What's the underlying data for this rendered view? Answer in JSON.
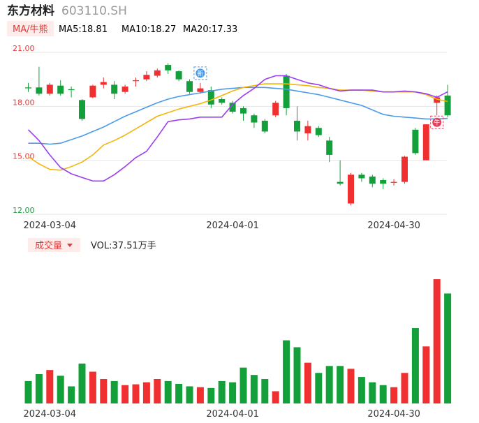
{
  "header": {
    "name": "东方材料",
    "code": "603110.SH"
  },
  "ma_legend": {
    "tag": "MA/牛熊",
    "items": [
      {
        "text": "MA5:18.81",
        "color": "#9b3df0"
      },
      {
        "text": "MA10:18.27",
        "color": "#f2b60a"
      },
      {
        "text": "MA20:17.33",
        "color": "#4a9be8"
      }
    ]
  },
  "volume_legend": {
    "tag": "成交量",
    "value": "VOL:37.51万手"
  },
  "colors": {
    "up": "#f03030",
    "down": "#13a03a",
    "ma5": "#9b3df0",
    "ma10": "#f2b60a",
    "ma20": "#4a9be8"
  },
  "markers": [
    {
      "label": "新",
      "index": 16,
      "color": "#4a9be8"
    },
    {
      "label": "牛",
      "index": 38,
      "color": "#e0405a"
    }
  ],
  "chart_data": {
    "type": "candlestick",
    "y_ticks": [
      "21.00",
      "18.00",
      "15.00",
      "12.00"
    ],
    "ylim": [
      12,
      21
    ],
    "x_tick_labels": [
      {
        "index": 2,
        "label": "2024-03-04"
      },
      {
        "index": 19,
        "label": "2024-04-01"
      },
      {
        "index": 34,
        "label": "2024-04-30"
      }
    ],
    "candles": [
      {
        "o": 19.05,
        "c": 19.0,
        "h": 19.3,
        "l": 18.8,
        "v": 0.55
      },
      {
        "o": 19.05,
        "c": 18.7,
        "h": 20.2,
        "l": 18.6,
        "v": 0.72
      },
      {
        "o": 18.7,
        "c": 19.2,
        "h": 19.3,
        "l": 18.6,
        "v": 0.82
      },
      {
        "o": 19.15,
        "c": 18.7,
        "h": 19.45,
        "l": 18.6,
        "v": 0.68
      },
      {
        "o": 18.95,
        "c": 18.9,
        "h": 19.1,
        "l": 18.5,
        "v": 0.42
      },
      {
        "o": 18.35,
        "c": 17.3,
        "h": 18.4,
        "l": 17.2,
        "v": 0.98
      },
      {
        "o": 18.5,
        "c": 19.15,
        "h": 19.2,
        "l": 18.45,
        "v": 0.78
      },
      {
        "o": 19.2,
        "c": 19.35,
        "h": 19.6,
        "l": 19.0,
        "v": 0.6
      },
      {
        "o": 19.2,
        "c": 18.7,
        "h": 19.4,
        "l": 18.4,
        "v": 0.55
      },
      {
        "o": 18.8,
        "c": 19.1,
        "h": 19.2,
        "l": 18.7,
        "v": 0.45
      },
      {
        "o": 19.4,
        "c": 19.45,
        "h": 19.6,
        "l": 19.1,
        "v": 0.47
      },
      {
        "o": 19.5,
        "c": 19.75,
        "h": 19.95,
        "l": 19.4,
        "v": 0.52
      },
      {
        "o": 19.7,
        "c": 20.0,
        "h": 20.1,
        "l": 19.6,
        "v": 0.6
      },
      {
        "o": 20.3,
        "c": 20.0,
        "h": 20.4,
        "l": 19.8,
        "v": 0.55
      },
      {
        "o": 19.95,
        "c": 19.5,
        "h": 20.0,
        "l": 19.4,
        "v": 0.48
      },
      {
        "o": 19.4,
        "c": 18.8,
        "h": 19.5,
        "l": 18.7,
        "v": 0.42
      },
      {
        "o": 18.8,
        "c": 19.0,
        "h": 19.3,
        "l": 18.7,
        "v": 0.4
      },
      {
        "o": 18.9,
        "c": 18.1,
        "h": 19.1,
        "l": 17.9,
        "v": 0.38
      },
      {
        "o": 18.4,
        "c": 18.2,
        "h": 18.5,
        "l": 18.1,
        "v": 0.55
      },
      {
        "o": 18.2,
        "c": 17.7,
        "h": 18.3,
        "l": 17.6,
        "v": 0.52
      },
      {
        "o": 17.9,
        "c": 17.6,
        "h": 18.0,
        "l": 17.2,
        "v": 0.88
      },
      {
        "o": 17.5,
        "c": 17.1,
        "h": 17.6,
        "l": 16.8,
        "v": 0.7
      },
      {
        "o": 17.2,
        "c": 16.6,
        "h": 17.3,
        "l": 16.5,
        "v": 0.6
      },
      {
        "o": 17.5,
        "c": 18.2,
        "h": 18.3,
        "l": 17.4,
        "v": 0.3
      },
      {
        "o": 19.7,
        "c": 17.9,
        "h": 19.8,
        "l": 17.5,
        "v": 1.55
      },
      {
        "o": 17.2,
        "c": 16.6,
        "h": 18.0,
        "l": 16.1,
        "v": 1.38
      },
      {
        "o": 16.5,
        "c": 16.9,
        "h": 17.2,
        "l": 16.1,
        "v": 1.0
      },
      {
        "o": 16.8,
        "c": 16.4,
        "h": 16.9,
        "l": 16.3,
        "v": 0.75
      },
      {
        "o": 16.1,
        "c": 15.3,
        "h": 16.3,
        "l": 14.9,
        "v": 0.92
      },
      {
        "o": 13.8,
        "c": 13.7,
        "h": 15.0,
        "l": 13.6,
        "v": 0.92
      },
      {
        "o": 12.6,
        "c": 14.2,
        "h": 14.3,
        "l": 12.5,
        "v": 0.85
      },
      {
        "o": 14.2,
        "c": 14.0,
        "h": 14.3,
        "l": 13.8,
        "v": 0.65
      },
      {
        "o": 14.1,
        "c": 13.7,
        "h": 14.2,
        "l": 13.5,
        "v": 0.52
      },
      {
        "o": 13.9,
        "c": 13.7,
        "h": 14.0,
        "l": 13.4,
        "v": 0.45
      },
      {
        "o": 13.75,
        "c": 13.8,
        "h": 13.95,
        "l": 13.6,
        "v": 0.4
      },
      {
        "o": 13.8,
        "c": 15.2,
        "h": 15.25,
        "l": 13.7,
        "v": 0.75
      },
      {
        "o": 16.7,
        "c": 15.4,
        "h": 16.8,
        "l": 15.3,
        "v": 1.85
      },
      {
        "o": 15.0,
        "c": 17.0,
        "h": 17.0,
        "l": 15.0,
        "v": 1.4
      },
      {
        "o": 18.2,
        "c": 18.5,
        "h": 18.6,
        "l": 17.5,
        "v": 3.05
      },
      {
        "o": 18.6,
        "c": 17.5,
        "h": 19.2,
        "l": 17.4,
        "v": 2.7
      }
    ],
    "ma5": [
      16.7,
      16.1,
      15.3,
      14.6,
      14.25,
      14.05,
      13.85,
      13.85,
      14.2,
      14.65,
      15.15,
      15.5,
      16.3,
      17.15,
      17.25,
      17.3,
      17.4,
      17.4,
      17.4,
      18.1,
      18.6,
      19.0,
      19.5,
      19.7,
      19.7,
      19.5,
      19.3,
      19.2,
      19.0,
      18.85,
      18.9,
      18.9,
      18.9,
      18.8,
      18.8,
      18.85,
      18.8,
      18.7,
      18.5,
      18.81
    ],
    "ma10": [
      15.2,
      14.8,
      14.5,
      14.45,
      14.65,
      14.9,
      15.3,
      15.85,
      16.1,
      16.4,
      16.75,
      17.1,
      17.45,
      17.65,
      17.85,
      18.0,
      18.15,
      18.35,
      18.6,
      18.85,
      19.05,
      19.15,
      19.25,
      19.25,
      19.25,
      19.2,
      19.15,
      19.05,
      19.0,
      18.9,
      18.9,
      18.9,
      18.85,
      18.8,
      18.8,
      18.8,
      18.8,
      18.65,
      18.4,
      18.27
    ],
    "ma20": [
      15.95,
      15.95,
      15.9,
      15.95,
      16.15,
      16.35,
      16.6,
      16.85,
      17.15,
      17.45,
      17.7,
      17.95,
      18.2,
      18.4,
      18.55,
      18.65,
      18.75,
      18.85,
      18.95,
      19.0,
      19.05,
      19.05,
      19.05,
      19.0,
      18.95,
      18.85,
      18.75,
      18.65,
      18.5,
      18.35,
      18.2,
      18.05,
      17.8,
      17.55,
      17.45,
      17.4,
      17.35,
      17.3,
      17.3,
      17.33
    ]
  }
}
